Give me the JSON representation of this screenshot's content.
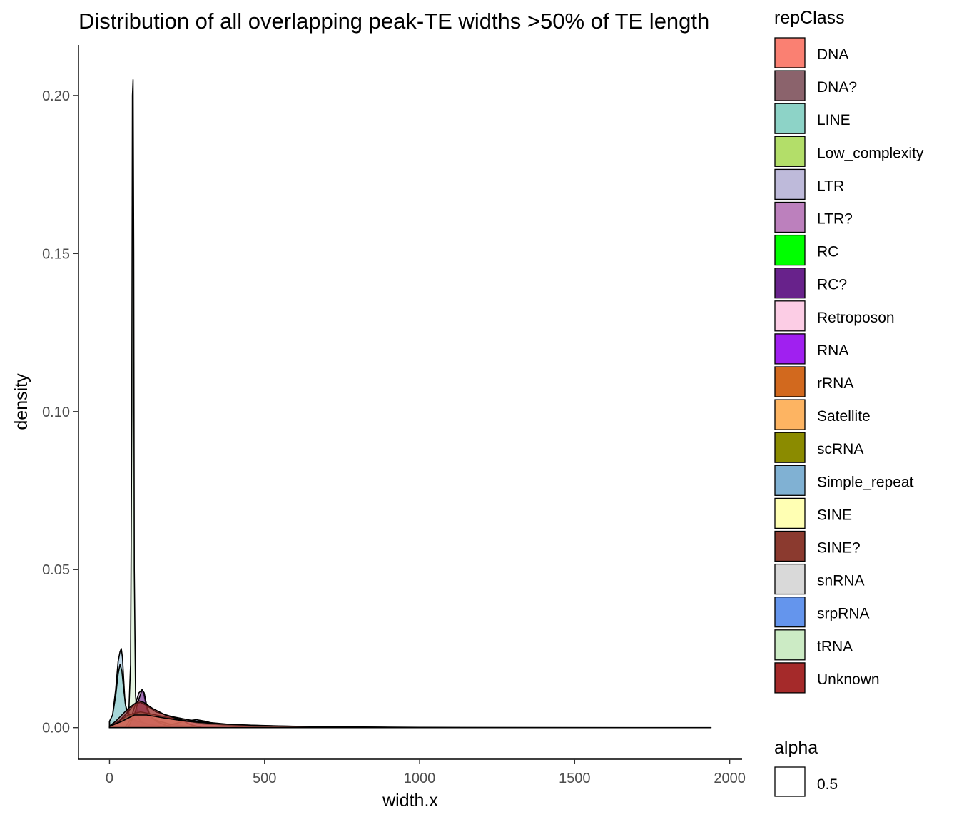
{
  "chart_data": {
    "type": "area",
    "title": "Distribution of all overlapping peak-TE widths >50% of TE length",
    "xlabel": "width.x",
    "ylabel": "density",
    "xlim": [
      -100,
      2040
    ],
    "ylim": [
      -0.01,
      0.216
    ],
    "x_ticks": [
      0,
      500,
      1000,
      1500,
      2000
    ],
    "x_tick_labels": [
      "0",
      "500",
      "1000",
      "1500",
      "2000"
    ],
    "y_ticks": [
      0.0,
      0.05,
      0.1,
      0.15,
      0.2
    ],
    "y_tick_labels": [
      "0.00",
      "0.05",
      "0.10",
      "0.15",
      "0.20"
    ],
    "grid": false,
    "legend_position": "right",
    "legend": {
      "title": "repClass",
      "entries": [
        {
          "label": "DNA",
          "color": "#FA8072"
        },
        {
          "label": "DNA?",
          "color": "#8B636C"
        },
        {
          "label": "LINE",
          "color": "#8DD3C7"
        },
        {
          "label": "Low_complexity",
          "color": "#B3DE69"
        },
        {
          "label": "LTR",
          "color": "#BEBADA"
        },
        {
          "label": "LTR?",
          "color": "#BC80BD"
        },
        {
          "label": "RC",
          "color": "#00FF00"
        },
        {
          "label": "RC?",
          "color": "#68228B"
        },
        {
          "label": "Retroposon",
          "color": "#FCCDE5"
        },
        {
          "label": "RNA",
          "color": "#A020F0"
        },
        {
          "label": "rRNA",
          "color": "#D2691E"
        },
        {
          "label": "Satellite",
          "color": "#FDB462"
        },
        {
          "label": "scRNA",
          "color": "#8B8B00"
        },
        {
          "label": "Simple_repeat",
          "color": "#80B1D3"
        },
        {
          "label": "SINE",
          "color": "#FFFFB3"
        },
        {
          "label": "SINE?",
          "color": "#8B3A2F"
        },
        {
          "label": "snRNA",
          "color": "#D9D9D9"
        },
        {
          "label": "srpRNA",
          "color": "#6495ED"
        },
        {
          "label": "tRNA",
          "color": "#CCEBC5"
        },
        {
          "label": "Unknown",
          "color": "#A52A2A"
        }
      ]
    },
    "alpha_legend": {
      "title": "alpha",
      "value_label": "0.5"
    },
    "series": [
      {
        "name": "tRNA",
        "color": "#CCEBC5",
        "x": [
          20,
          50,
          62,
          68,
          72,
          74,
          76,
          78,
          80,
          84,
          90,
          100,
          120,
          200
        ],
        "y": [
          0.001,
          0.002,
          0.004,
          0.02,
          0.1,
          0.2,
          0.205,
          0.15,
          0.05,
          0.01,
          0.004,
          0.002,
          0.001,
          0.0
        ]
      },
      {
        "name": "Simple_repeat",
        "color": "#80B1D3",
        "x": [
          0,
          10,
          20,
          28,
          34,
          38,
          42,
          46,
          50,
          55,
          60,
          70,
          80,
          100,
          150
        ],
        "y": [
          0.002,
          0.004,
          0.012,
          0.021,
          0.024,
          0.025,
          0.022,
          0.015,
          0.008,
          0.005,
          0.004,
          0.003,
          0.002,
          0.001,
          0.0
        ]
      },
      {
        "name": "LINE",
        "color": "#8DD3C7",
        "x": [
          0,
          10,
          20,
          28,
          34,
          40,
          46,
          52,
          58,
          70,
          90,
          130,
          200
        ],
        "y": [
          0.002,
          0.004,
          0.01,
          0.017,
          0.02,
          0.018,
          0.012,
          0.007,
          0.005,
          0.003,
          0.002,
          0.001,
          0.0
        ]
      },
      {
        "name": "LTR?",
        "color": "#BC80BD",
        "x": [
          50,
          70,
          85,
          95,
          105,
          112,
          120,
          135,
          160,
          200,
          300
        ],
        "y": [
          0.0,
          0.003,
          0.008,
          0.011,
          0.012,
          0.01,
          0.006,
          0.003,
          0.002,
          0.001,
          0.0
        ]
      },
      {
        "name": "RC?",
        "color": "#68228B",
        "x": [
          60,
          80,
          95,
          105,
          112,
          120,
          130,
          150,
          200
        ],
        "y": [
          0.0,
          0.004,
          0.009,
          0.012,
          0.011,
          0.007,
          0.004,
          0.002,
          0.0
        ]
      },
      {
        "name": "srpRNA",
        "color": "#6495ED",
        "x": [
          150,
          200,
          240,
          280,
          310,
          340,
          380,
          430,
          500
        ],
        "y": [
          0.0,
          0.001,
          0.002,
          0.0025,
          0.002,
          0.0012,
          0.0006,
          0.0002,
          0.0
        ]
      },
      {
        "name": "Low_complexity",
        "color": "#B3DE69",
        "x": [
          0,
          30,
          60,
          100,
          150,
          200,
          230,
          260,
          300
        ],
        "y": [
          0.0,
          0.002,
          0.004,
          0.005,
          0.004,
          0.003,
          0.0025,
          0.001,
          0.0
        ]
      },
      {
        "name": "SINE?",
        "color": "#8B3A2F",
        "x": [
          0,
          30,
          60,
          80,
          100,
          120,
          150,
          200,
          280,
          400,
          600,
          900,
          1130
        ],
        "y": [
          0.0005,
          0.002,
          0.005,
          0.0075,
          0.008,
          0.007,
          0.005,
          0.0035,
          0.002,
          0.0009,
          0.0004,
          0.0001,
          0.0
        ]
      },
      {
        "name": "Unknown",
        "color": "#A52A2A",
        "x": [
          0,
          20,
          40,
          60,
          80,
          95,
          110,
          140,
          180,
          230,
          300,
          500,
          800
        ],
        "y": [
          0.0005,
          0.002,
          0.004,
          0.006,
          0.0075,
          0.0085,
          0.008,
          0.006,
          0.004,
          0.0025,
          0.0012,
          0.0003,
          0.0
        ]
      },
      {
        "name": "DNA",
        "color": "#FA8072",
        "x": [
          0,
          40,
          80,
          120,
          180,
          250,
          350,
          500,
          700,
          1000,
          1400,
          1940
        ],
        "y": [
          0.0004,
          0.002,
          0.004,
          0.004,
          0.003,
          0.002,
          0.0012,
          0.0006,
          0.0003,
          0.0001,
          3e-05,
          0.0
        ]
      }
    ]
  }
}
